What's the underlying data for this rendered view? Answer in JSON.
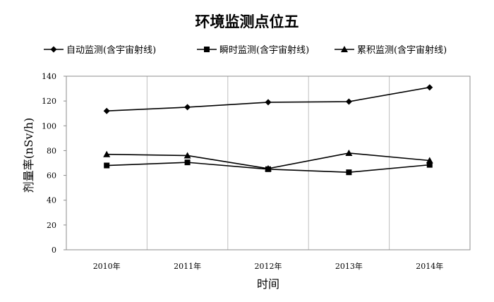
{
  "chart_data": {
    "type": "line",
    "title": "环境监测点位五",
    "xlabel": "时间",
    "ylabel": "剂量率(nSv/h)",
    "categories": [
      "2010年",
      "2011年",
      "2012年",
      "2013年",
      "2014年"
    ],
    "ylim": [
      0,
      140
    ],
    "yticks": [
      0,
      20,
      40,
      60,
      80,
      100,
      120,
      140
    ],
    "grid": "vertical",
    "legend_position": "top",
    "series": [
      {
        "name": "自动监测(含宇宙射线)",
        "marker": "diamond",
        "values": [
          112,
          115,
          119,
          119.5,
          131
        ]
      },
      {
        "name": "瞬时监测(含宇宙射线)",
        "marker": "square",
        "values": [
          68,
          70.5,
          65,
          62.5,
          68.5
        ]
      },
      {
        "name": "累积监测(含宇宙射线)",
        "marker": "triangle",
        "values": [
          77,
          76,
          65.5,
          78,
          72
        ]
      }
    ],
    "colors": {
      "line": "#000000",
      "grid": "#bfbfbf",
      "axis": "#8c8c8c"
    }
  }
}
